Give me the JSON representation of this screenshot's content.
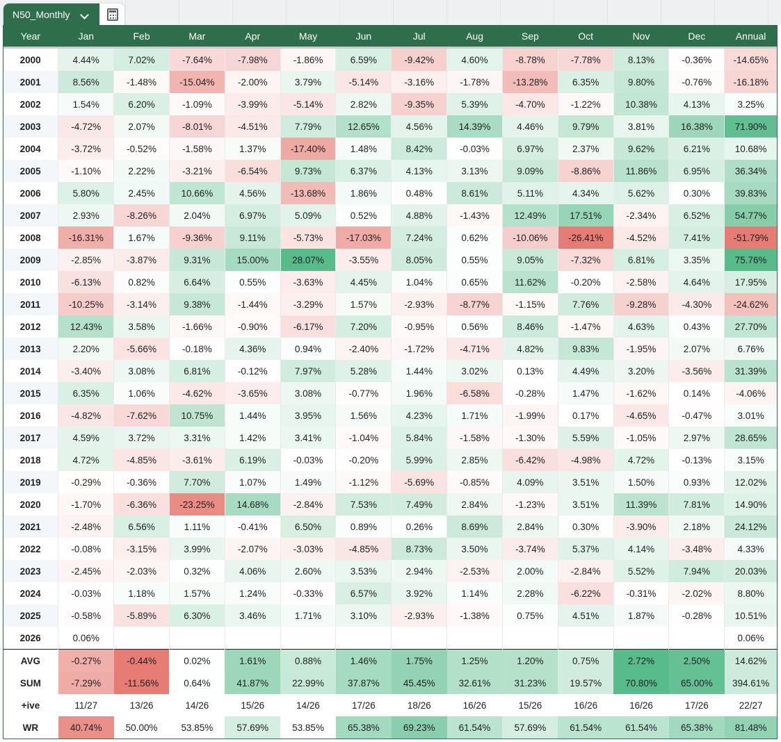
{
  "sheet_tab": {
    "name": "N50_Monthly"
  },
  "table": {
    "headers": [
      "Year",
      "Jan",
      "Feb",
      "Mar",
      "Apr",
      "May",
      "Jun",
      "Jul",
      "Aug",
      "Sep",
      "Oct",
      "Nov",
      "Dec",
      "Annual"
    ],
    "rows": [
      [
        "2000",
        "4.44%",
        "7.02%",
        "-7.64%",
        "-7.98%",
        "-1.86%",
        "6.59%",
        "-9.42%",
        "4.60%",
        "-8.78%",
        "-7.78%",
        "8.13%",
        "-0.36%",
        "-14.65%"
      ],
      [
        "2001",
        "8.56%",
        "-1.48%",
        "-15.04%",
        "-2.00%",
        "3.79%",
        "-5.14%",
        "-3.16%",
        "-1.78%",
        "-13.28%",
        "6.35%",
        "9.80%",
        "-0.76%",
        "-16.18%"
      ],
      [
        "2002",
        "1.54%",
        "6.20%",
        "-1.09%",
        "-3.99%",
        "-5.14%",
        "2.82%",
        "-9.35%",
        "5.39%",
        "-4.70%",
        "-1.22%",
        "10.38%",
        "4.13%",
        "3.25%"
      ],
      [
        "2003",
        "-4.72%",
        "2.07%",
        "-8.01%",
        "-4.51%",
        "7.79%",
        "12.65%",
        "4.56%",
        "14.39%",
        "4.46%",
        "9.79%",
        "3.81%",
        "16.38%",
        "71.90%"
      ],
      [
        "2004",
        "-3.72%",
        "-0.52%",
        "-1.58%",
        "1.37%",
        "-17.40%",
        "1.48%",
        "8.42%",
        "-0.03%",
        "6.97%",
        "2.37%",
        "9.62%",
        "6.21%",
        "10.68%"
      ],
      [
        "2005",
        "-1.10%",
        "2.22%",
        "-3.21%",
        "-6.54%",
        "9.73%",
        "6.37%",
        "4.13%",
        "3.13%",
        "9.09%",
        "-8.86%",
        "11.86%",
        "6.95%",
        "36.34%"
      ],
      [
        "2006",
        "5.80%",
        "2.45%",
        "10.66%",
        "4.56%",
        "-13.68%",
        "1.86%",
        "0.48%",
        "8.61%",
        "5.11%",
        "4.34%",
        "5.62%",
        "0.30%",
        "39.83%"
      ],
      [
        "2007",
        "2.93%",
        "-8.26%",
        "2.04%",
        "6.97%",
        "5.09%",
        "0.52%",
        "4.88%",
        "-1.43%",
        "12.49%",
        "17.51%",
        "-2.34%",
        "6.52%",
        "54.77%"
      ],
      [
        "2008",
        "-16.31%",
        "1.67%",
        "-9.36%",
        "9.11%",
        "-5.73%",
        "-17.03%",
        "7.24%",
        "0.62%",
        "-10.06%",
        "-26.41%",
        "-4.52%",
        "7.41%",
        "-51.79%"
      ],
      [
        "2009",
        "-2.85%",
        "-3.87%",
        "9.31%",
        "15.00%",
        "28.07%",
        "-3.55%",
        "8.05%",
        "0.55%",
        "9.05%",
        "-7.32%",
        "6.81%",
        "3.35%",
        "75.76%"
      ],
      [
        "2010",
        "-6.13%",
        "0.82%",
        "6.64%",
        "0.55%",
        "-3.63%",
        "4.45%",
        "1.04%",
        "0.65%",
        "11.62%",
        "-0.20%",
        "-2.58%",
        "4.64%",
        "17.95%"
      ],
      [
        "2011",
        "-10.25%",
        "-3.14%",
        "9.38%",
        "-1.44%",
        "-3.29%",
        "1.57%",
        "-2.93%",
        "-8.77%",
        "-1.15%",
        "7.76%",
        "-9.28%",
        "-4.30%",
        "-24.62%"
      ],
      [
        "2012",
        "12.43%",
        "3.58%",
        "-1.66%",
        "-0.90%",
        "-6.17%",
        "7.20%",
        "-0.95%",
        "0.56%",
        "8.46%",
        "-1.47%",
        "4.63%",
        "0.43%",
        "27.70%"
      ],
      [
        "2013",
        "2.20%",
        "-5.66%",
        "-0.18%",
        "4.36%",
        "0.94%",
        "-2.40%",
        "-1.72%",
        "-4.71%",
        "4.82%",
        "9.83%",
        "-1.95%",
        "2.07%",
        "6.76%"
      ],
      [
        "2014",
        "-3.40%",
        "3.08%",
        "6.81%",
        "-0.12%",
        "7.97%",
        "5.28%",
        "1.44%",
        "3.02%",
        "0.13%",
        "4.49%",
        "3.20%",
        "-3.56%",
        "31.39%"
      ],
      [
        "2015",
        "6.35%",
        "1.06%",
        "-4.62%",
        "-3.65%",
        "3.08%",
        "-0.77%",
        "1.96%",
        "-6.58%",
        "-0.28%",
        "1.47%",
        "-1.62%",
        "0.14%",
        "-4.06%"
      ],
      [
        "2016",
        "-4.82%",
        "-7.62%",
        "10.75%",
        "1.44%",
        "3.95%",
        "1.56%",
        "4.23%",
        "1.71%",
        "-1.99%",
        "0.17%",
        "-4.65%",
        "-0.47%",
        "3.01%"
      ],
      [
        "2017",
        "4.59%",
        "3.72%",
        "3.31%",
        "1.42%",
        "3.41%",
        "-1.04%",
        "5.84%",
        "-1.58%",
        "-1.30%",
        "5.59%",
        "-1.05%",
        "2.97%",
        "28.65%"
      ],
      [
        "2018",
        "4.72%",
        "-4.85%",
        "-3.61%",
        "6.19%",
        "-0.03%",
        "-0.20%",
        "5.99%",
        "2.85%",
        "-6.42%",
        "-4.98%",
        "4.72%",
        "-0.13%",
        "3.15%"
      ],
      [
        "2019",
        "-0.29%",
        "-0.36%",
        "7.70%",
        "1.07%",
        "1.49%",
        "-1.12%",
        "-5.69%",
        "-0.85%",
        "4.09%",
        "3.51%",
        "1.50%",
        "0.93%",
        "12.02%"
      ],
      [
        "2020",
        "-1.70%",
        "-6.36%",
        "-23.25%",
        "14.68%",
        "-2.84%",
        "7.53%",
        "7.49%",
        "2.84%",
        "-1.23%",
        "3.51%",
        "11.39%",
        "7.81%",
        "14.90%"
      ],
      [
        "2021",
        "-2.48%",
        "6.56%",
        "1.11%",
        "-0.41%",
        "6.50%",
        "0.89%",
        "0.26%",
        "8.69%",
        "2.84%",
        "0.30%",
        "-3.90%",
        "2.18%",
        "24.12%"
      ],
      [
        "2022",
        "-0.08%",
        "-3.15%",
        "3.99%",
        "-2.07%",
        "-3.03%",
        "-4.85%",
        "8.73%",
        "3.50%",
        "-3.74%",
        "5.37%",
        "4.14%",
        "-3.48%",
        "4.33%"
      ],
      [
        "2023",
        "-2.45%",
        "-2.03%",
        "0.32%",
        "4.06%",
        "2.60%",
        "3.53%",
        "2.94%",
        "-2.53%",
        "2.00%",
        "-2.84%",
        "5.52%",
        "7.94%",
        "20.03%"
      ],
      [
        "2024",
        "-0.03%",
        "1.18%",
        "1.57%",
        "1.24%",
        "-0.33%",
        "6.57%",
        "3.92%",
        "1.14%",
        "2.28%",
        "-6.22%",
        "-0.31%",
        "-2.02%",
        "8.80%"
      ],
      [
        "2025",
        "-0.58%",
        "-5.89%",
        "6.30%",
        "3.46%",
        "1.71%",
        "3.10%",
        "-2.93%",
        "-1.38%",
        "0.75%",
        "4.51%",
        "1.87%",
        "-0.28%",
        "10.51%"
      ],
      [
        "2026",
        "0.06%",
        "",
        "",
        "",
        "",
        "",
        "",
        "",
        "",
        "",
        "",
        "",
        "0.06%"
      ]
    ],
    "summary": [
      [
        "AVG",
        "-0.27%",
        "-0.44%",
        "0.02%",
        "1.61%",
        "0.88%",
        "1.46%",
        "1.75%",
        "1.25%",
        "1.20%",
        "0.75%",
        "2.72%",
        "2.50%",
        "14.62%"
      ],
      [
        "SUM",
        "-7.29%",
        "-11.56%",
        "0.64%",
        "41.87%",
        "22.99%",
        "37.87%",
        "45.45%",
        "32.61%",
        "31.23%",
        "19.57%",
        "70.80%",
        "65.00%",
        "394.61%"
      ],
      [
        "+ive",
        "11/27",
        "13/26",
        "14/26",
        "15/26",
        "14/26",
        "17/26",
        "18/26",
        "16/26",
        "15/26",
        "16/26",
        "16/26",
        "17/26",
        "22/27"
      ],
      [
        "WR",
        "40.74%",
        "50.00%",
        "53.85%",
        "57.69%",
        "53.85%",
        "65.38%",
        "69.23%",
        "61.54%",
        "57.69%",
        "61.54%",
        "61.54%",
        "65.38%",
        "81.48%"
      ]
    ]
  },
  "colors": {
    "header_bg": "#2f6e4b",
    "positive": "#57bb8a",
    "negative": "#e67c73",
    "neutral": "#ffffff"
  }
}
